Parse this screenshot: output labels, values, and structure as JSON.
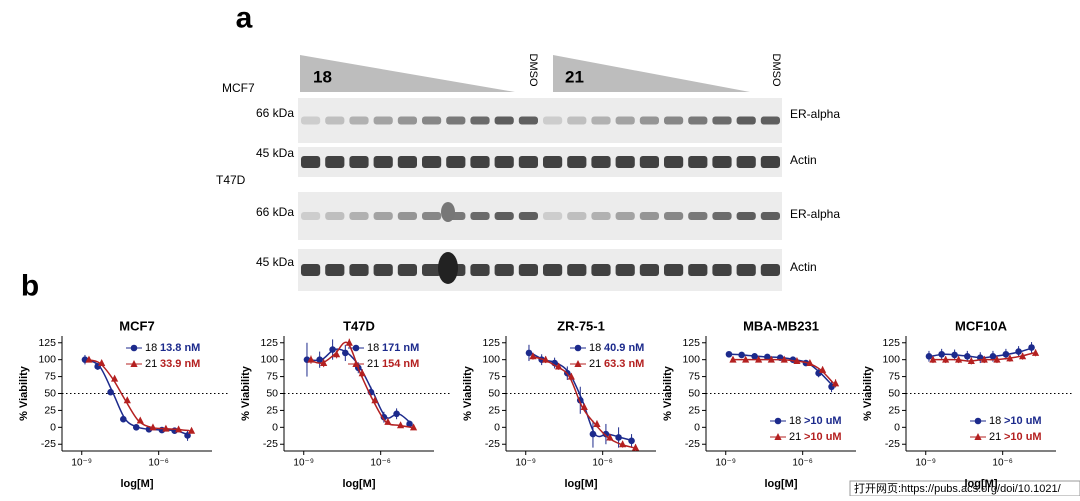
{
  "figure": {
    "panel_a": {
      "label": "a",
      "cell1": "MCF7",
      "cell2": "T47D",
      "compound1": "18",
      "compound2": "21",
      "dmso1": "DMSO",
      "dmso2": "DMSO",
      "mw1": "66 kDa",
      "mw2": "45 kDa",
      "mw3": "66 kDa",
      "mw4": "45 kDa",
      "protein1": "ER-alpha",
      "protein2": "Actin",
      "protein3": "ER-alpha",
      "protein4": "Actin"
    },
    "panel_b": {
      "label": "b"
    },
    "footer": "打开网页:https://pubs.acs.org/doi/10.1021/"
  },
  "chart_data": [
    {
      "type": "scatter",
      "title": "MCF7",
      "y_label": "% Viability",
      "x_label": "log[M]",
      "log_x": true,
      "legend": "upper right",
      "refline": 50,
      "x": [
        1.6e-09,
        5e-09,
        1.6e-08,
        5e-08,
        1.6e-07,
        5e-07,
        1.6e-06,
        5e-06,
        1.6e-05
      ],
      "xlim": [
        1.7e-10,
        0.00012
      ],
      "xticks": [
        {
          "value": 1e-09,
          "label": "10⁻⁹"
        },
        {
          "value": 1e-06,
          "label": "10⁻⁶"
        }
      ],
      "ylim": [
        -35,
        135
      ],
      "yticks": [
        -25,
        0,
        25,
        50,
        75,
        100,
        125
      ],
      "series": [
        {
          "name": "18",
          "ic50_label": "13.8 nM",
          "color": "#1c2a8c",
          "marker": "circle",
          "values": [
            100,
            90,
            52,
            12,
            0,
            -3,
            -4,
            -5,
            -12
          ],
          "errors": [
            7,
            5,
            4,
            3,
            3,
            3,
            3,
            3,
            8
          ]
        },
        {
          "name": "21",
          "ic50_label": "33.9 nM",
          "color": "#b42020",
          "marker": "triangle",
          "values": [
            100,
            95,
            72,
            40,
            10,
            0,
            -2,
            -3,
            -5
          ],
          "errors": [
            4,
            4,
            4,
            4,
            3,
            3,
            3,
            3,
            3
          ]
        }
      ]
    },
    {
      "type": "scatter",
      "title": "T47D",
      "y_label": "% Viability",
      "x_label": "log[M]",
      "log_x": true,
      "legend": "upper right",
      "refline": 50,
      "x": [
        1.6e-09,
        5e-09,
        1.6e-08,
        5e-08,
        1.6e-07,
        5e-07,
        1.6e-06,
        5e-06,
        1.6e-05
      ],
      "xlim": [
        1.7e-10,
        0.00012
      ],
      "xticks": [
        {
          "value": 1e-09,
          "label": "10⁻⁹"
        },
        {
          "value": 1e-06,
          "label": "10⁻⁶"
        }
      ],
      "ylim": [
        -35,
        135
      ],
      "yticks": [
        -25,
        0,
        25,
        50,
        75,
        100,
        125
      ],
      "series": [
        {
          "name": "18",
          "ic50_label": "171 nM",
          "color": "#1c2a8c",
          "marker": "circle",
          "values": [
            100,
            100,
            115,
            110,
            88,
            52,
            15,
            20,
            5
          ],
          "errors": [
            25,
            12,
            15,
            12,
            8,
            8,
            8,
            8,
            5
          ]
        },
        {
          "name": "21",
          "ic50_label": "154 nM",
          "color": "#b42020",
          "marker": "triangle",
          "values": [
            100,
            95,
            108,
            125,
            80,
            40,
            8,
            3,
            0
          ],
          "errors": [
            6,
            6,
            6,
            6,
            6,
            6,
            4,
            3,
            3
          ]
        }
      ]
    },
    {
      "type": "scatter",
      "title": "ZR-75-1",
      "y_label": "% Viability",
      "x_label": "log[M]",
      "log_x": true,
      "legend": "upper right",
      "refline": 50,
      "x": [
        1.6e-09,
        5e-09,
        1.6e-08,
        5e-08,
        1.6e-07,
        5e-07,
        1.6e-06,
        5e-06,
        1.6e-05
      ],
      "xlim": [
        1.7e-10,
        0.00012
      ],
      "xticks": [
        {
          "value": 1e-09,
          "label": "10⁻⁹"
        },
        {
          "value": 1e-06,
          "label": "10⁻⁶"
        }
      ],
      "ylim": [
        -35,
        135
      ],
      "yticks": [
        -25,
        0,
        25,
        50,
        75,
        100,
        125
      ],
      "series": [
        {
          "name": "18",
          "ic50_label": "40.9 nM",
          "color": "#1c2a8c",
          "marker": "circle",
          "values": [
            110,
            100,
            95,
            80,
            40,
            -10,
            -10,
            -15,
            -20
          ],
          "errors": [
            12,
            8,
            8,
            10,
            20,
            20,
            15,
            15,
            10
          ]
        },
        {
          "name": "21",
          "ic50_label": "63.3 nM",
          "color": "#b42020",
          "marker": "triangle",
          "values": [
            105,
            100,
            90,
            75,
            30,
            5,
            -15,
            -25,
            -30
          ],
          "errors": [
            5,
            5,
            5,
            5,
            5,
            5,
            5,
            5,
            5
          ]
        }
      ]
    },
    {
      "type": "scatter",
      "title": "MBA-MB231",
      "y_label": "% Viability",
      "x_label": "log[M]",
      "log_x": true,
      "legend": "lower right",
      "refline": 50,
      "x": [
        1.6e-09,
        5e-09,
        1.6e-08,
        5e-08,
        1.6e-07,
        5e-07,
        1.6e-06,
        5e-06,
        1.6e-05
      ],
      "xlim": [
        1.7e-10,
        0.00012
      ],
      "xticks": [
        {
          "value": 1e-09,
          "label": "10⁻⁹"
        },
        {
          "value": 1e-06,
          "label": "10⁻⁶"
        }
      ],
      "ylim": [
        -35,
        135
      ],
      "yticks": [
        -25,
        0,
        25,
        50,
        75,
        100,
        125
      ],
      "series": [
        {
          "name": "18",
          "ic50_label": ">10 uM",
          "color": "#1c2a8c",
          "marker": "circle",
          "values": [
            108,
            107,
            105,
            104,
            103,
            100,
            95,
            80,
            60
          ],
          "errors": [
            4,
            4,
            4,
            4,
            4,
            4,
            4,
            6,
            8
          ]
        },
        {
          "name": "21",
          "ic50_label": ">10 uM",
          "color": "#b42020",
          "marker": "triangle",
          "values": [
            100,
            100,
            100,
            100,
            100,
            98,
            95,
            85,
            65
          ],
          "errors": [
            3,
            3,
            3,
            3,
            3,
            3,
            3,
            5,
            6
          ]
        }
      ]
    },
    {
      "type": "scatter",
      "title": "MCF10A",
      "y_label": "% Viability",
      "x_label": "log[M]",
      "log_x": true,
      "legend": "lower right",
      "refline": 50,
      "x": [
        1.6e-09,
        5e-09,
        1.6e-08,
        5e-08,
        1.6e-07,
        5e-07,
        1.6e-06,
        5e-06,
        1.6e-05
      ],
      "xlim": [
        1.7e-10,
        0.00012
      ],
      "xticks": [
        {
          "value": 1e-09,
          "label": "10⁻⁹"
        },
        {
          "value": 1e-06,
          "label": "10⁻⁶"
        }
      ],
      "ylim": [
        -35,
        135
      ],
      "yticks": [
        -25,
        0,
        25,
        50,
        75,
        100,
        125
      ],
      "series": [
        {
          "name": "18",
          "ic50_label": ">10 uM",
          "color": "#1c2a8c",
          "marker": "circle",
          "values": [
            105,
            108,
            107,
            105,
            103,
            105,
            108,
            112,
            118
          ],
          "errors": [
            8,
            8,
            8,
            8,
            8,
            8,
            8,
            8,
            8
          ]
        },
        {
          "name": "21",
          "ic50_label": ">10 uM",
          "color": "#b42020",
          "marker": "triangle",
          "values": [
            100,
            100,
            100,
            98,
            100,
            100,
            102,
            105,
            110
          ],
          "errors": [
            5,
            5,
            5,
            5,
            5,
            5,
            5,
            5,
            5
          ]
        }
      ]
    }
  ]
}
